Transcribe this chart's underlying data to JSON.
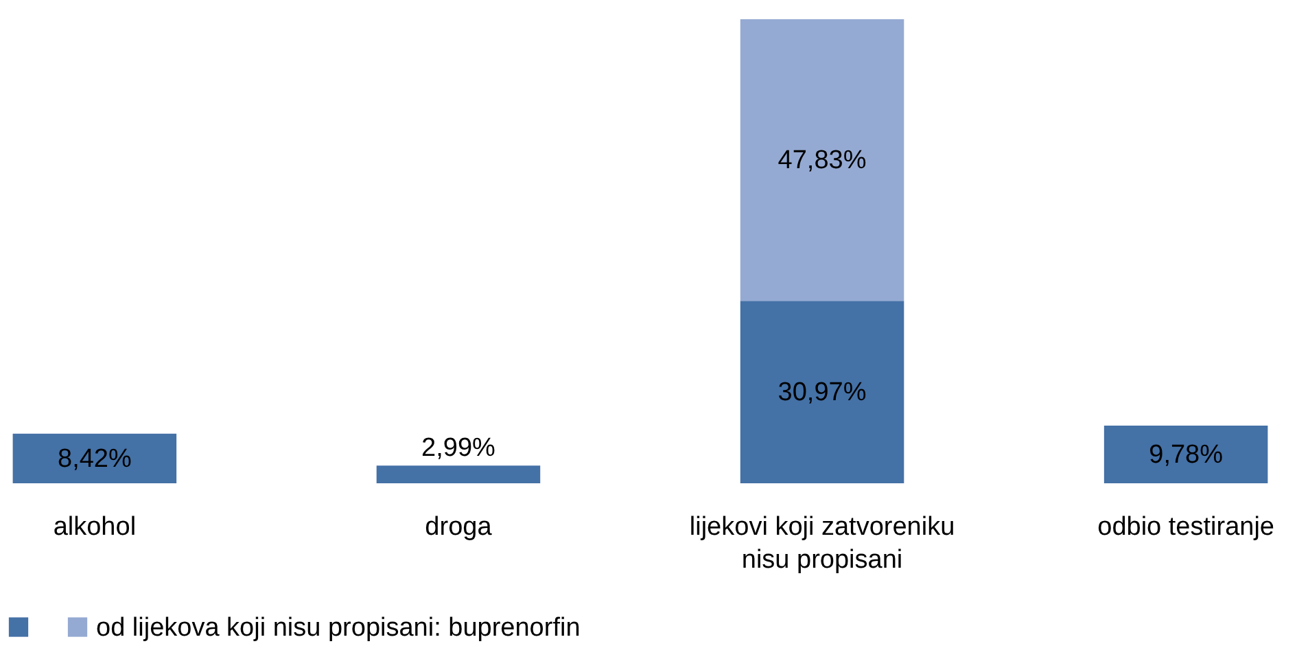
{
  "chart_data": {
    "type": "bar",
    "stacked": true,
    "categories": [
      "alkohol",
      "droga",
      "lijekovi koji zatvoreniku nisu propisani",
      "odbio testiranje"
    ],
    "series": [
      {
        "color": "#4471a6",
        "values": [
          8.42,
          2.99,
          30.97,
          9.78
        ],
        "value_labels": [
          "8,42%",
          "2,99%",
          "30,97%",
          "9,78%"
        ]
      },
      {
        "name": "od lijekova koji nisu propisani: buprenorfin",
        "color": "#95aad2",
        "values": [
          null,
          null,
          47.83,
          null
        ],
        "value_labels": [
          null,
          null,
          "47,83%",
          null
        ]
      }
    ],
    "legend": "bottom"
  }
}
